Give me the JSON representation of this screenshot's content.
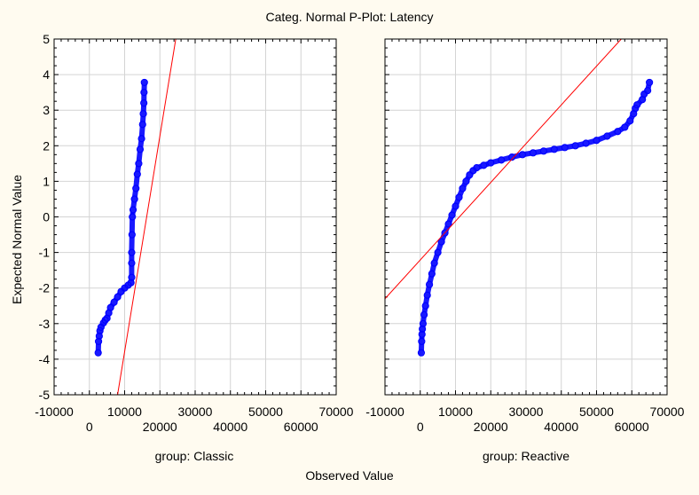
{
  "chart_data": {
    "type": "scatter",
    "title": "Categ. Normal P-Plot:  Latency",
    "xlabel": "Observed Value",
    "ylabel": "Expected Normal Value",
    "ylim": [
      -5,
      5
    ],
    "y_ticks": [
      "5",
      "4",
      "3",
      "2",
      "1",
      "0",
      "-1",
      "-2",
      "-3",
      "-4",
      "-5"
    ],
    "grid": true,
    "colors": {
      "points": "#0000ff",
      "fit_line": "#ff0000",
      "background": "#fffbf0",
      "plot_bg": "#ffffff",
      "grid": "#d4d4d4"
    },
    "panels": [
      {
        "label": "group: Classic",
        "xlim": [
          -10000,
          70000
        ],
        "x_ticks_top": [
          "-10000",
          "10000",
          "30000",
          "50000",
          "70000"
        ],
        "x_ticks_bottom": [
          "0",
          "20000",
          "40000",
          "60000"
        ],
        "fit_line": [
          [
            8000,
            -5
          ],
          [
            24500,
            5
          ]
        ],
        "points": [
          [
            2500,
            -3.82
          ],
          [
            2600,
            -3.5
          ],
          [
            2800,
            -3.35
          ],
          [
            3000,
            -3.2
          ],
          [
            3300,
            -3.1
          ],
          [
            4000,
            -2.98
          ],
          [
            4500,
            -2.9
          ],
          [
            5000,
            -2.85
          ],
          [
            5500,
            -2.7
          ],
          [
            6000,
            -2.55
          ],
          [
            7000,
            -2.4
          ],
          [
            8000,
            -2.25
          ],
          [
            9000,
            -2.1
          ],
          [
            10000,
            -2.0
          ],
          [
            11000,
            -1.92
          ],
          [
            11800,
            -1.85
          ],
          [
            12000,
            -1.7
          ],
          [
            12000,
            -1.3
          ],
          [
            12000,
            -1.0
          ],
          [
            12100,
            -0.5
          ],
          [
            12200,
            0.0
          ],
          [
            12400,
            0.2
          ],
          [
            12800,
            0.5
          ],
          [
            13200,
            0.8
          ],
          [
            13600,
            1.2
          ],
          [
            14000,
            1.5
          ],
          [
            14400,
            1.9
          ],
          [
            14800,
            2.2
          ],
          [
            15100,
            2.6
          ],
          [
            15300,
            2.9
          ],
          [
            15450,
            3.2
          ],
          [
            15500,
            3.5
          ],
          [
            15600,
            3.78
          ]
        ]
      },
      {
        "label": "group: Reactive",
        "xlim": [
          -10000,
          70000
        ],
        "x_ticks_top": [
          "-10000",
          "10000",
          "30000",
          "50000",
          "70000"
        ],
        "x_ticks_bottom": [
          "0",
          "20000",
          "40000",
          "60000"
        ],
        "fit_line": [
          [
            -10000,
            -2.3
          ],
          [
            57000,
            5
          ]
        ],
        "points": [
          [
            300,
            -3.82
          ],
          [
            400,
            -3.5
          ],
          [
            500,
            -3.3
          ],
          [
            600,
            -3.15
          ],
          [
            800,
            -3.0
          ],
          [
            1100,
            -2.75
          ],
          [
            1500,
            -2.5
          ],
          [
            2000,
            -2.2
          ],
          [
            2600,
            -1.9
          ],
          [
            3300,
            -1.6
          ],
          [
            4000,
            -1.3
          ],
          [
            5000,
            -1.0
          ],
          [
            6000,
            -0.7
          ],
          [
            7000,
            -0.45
          ],
          [
            8000,
            -0.2
          ],
          [
            9000,
            0.05
          ],
          [
            10000,
            0.3
          ],
          [
            11000,
            0.55
          ],
          [
            12000,
            0.8
          ],
          [
            13000,
            1.0
          ],
          [
            14000,
            1.18
          ],
          [
            15000,
            1.3
          ],
          [
            16000,
            1.38
          ],
          [
            18000,
            1.45
          ],
          [
            20000,
            1.52
          ],
          [
            23000,
            1.6
          ],
          [
            26000,
            1.68
          ],
          [
            29000,
            1.75
          ],
          [
            32000,
            1.8
          ],
          [
            35000,
            1.85
          ],
          [
            38000,
            1.9
          ],
          [
            41000,
            1.95
          ],
          [
            44000,
            2.0
          ],
          [
            47000,
            2.07
          ],
          [
            50000,
            2.15
          ],
          [
            53000,
            2.27
          ],
          [
            56000,
            2.4
          ],
          [
            58000,
            2.52
          ],
          [
            59500,
            2.7
          ],
          [
            60500,
            2.9
          ],
          [
            61000,
            3.05
          ],
          [
            61500,
            3.15
          ],
          [
            63000,
            3.3
          ],
          [
            63500,
            3.45
          ],
          [
            64500,
            3.55
          ],
          [
            65000,
            3.78
          ]
        ]
      }
    ]
  }
}
